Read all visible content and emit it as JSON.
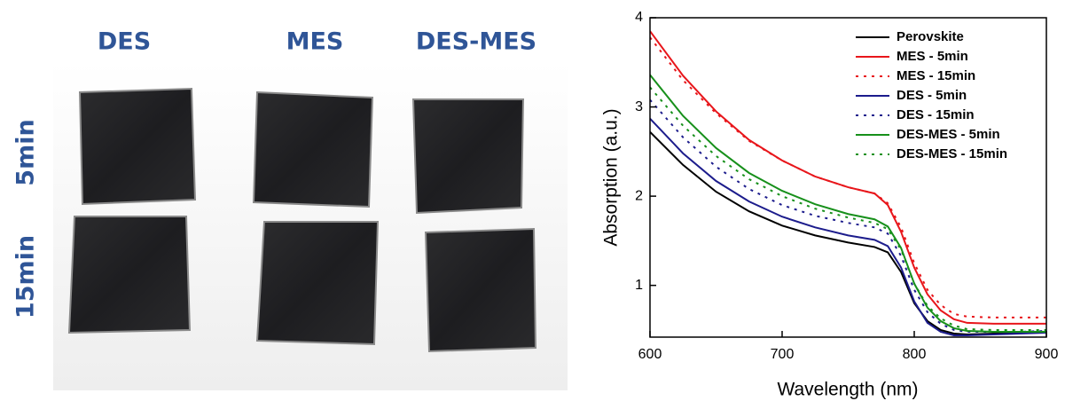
{
  "photo_panel": {
    "column_labels": [
      "DES",
      "MES",
      "DES-MES"
    ],
    "row_labels": [
      "5min",
      "15min"
    ]
  },
  "chart_data": {
    "type": "line",
    "xlabel": "Wavelength (nm)",
    "ylabel": "Absorption (a.u.)",
    "x": [
      600,
      625,
      650,
      675,
      700,
      725,
      750,
      770,
      780,
      790,
      800,
      810,
      820,
      830,
      840,
      860,
      880,
      900
    ],
    "xlim": [
      600,
      900
    ],
    "xticks": [
      600,
      700,
      800,
      900
    ],
    "ylim": [
      0.42,
      4
    ],
    "yticks": [
      1,
      2,
      3,
      4
    ],
    "legend": "upper right",
    "series": [
      {
        "name": "Perovskite",
        "color": "#000000",
        "style": "solid",
        "values": [
          2.72,
          2.35,
          2.05,
          1.83,
          1.67,
          1.56,
          1.48,
          1.43,
          1.37,
          1.15,
          0.8,
          0.6,
          0.5,
          0.46,
          0.45,
          0.46,
          0.47,
          0.48
        ]
      },
      {
        "name": "MES - 5min",
        "color": "#e8161b",
        "style": "solid",
        "values": [
          3.85,
          3.35,
          2.95,
          2.63,
          2.4,
          2.22,
          2.1,
          2.03,
          1.9,
          1.6,
          1.2,
          0.9,
          0.72,
          0.62,
          0.58,
          0.57,
          0.57,
          0.57
        ]
      },
      {
        "name": "MES - 15min",
        "color": "#e8161b",
        "style": "dotted",
        "values": [
          3.78,
          3.3,
          2.93,
          2.62,
          2.4,
          2.22,
          2.1,
          2.03,
          1.92,
          1.65,
          1.25,
          0.95,
          0.78,
          0.68,
          0.65,
          0.64,
          0.64,
          0.64
        ]
      },
      {
        "name": "DES - 5min",
        "color": "#1c1c8c",
        "style": "solid",
        "values": [
          2.87,
          2.48,
          2.17,
          1.94,
          1.77,
          1.65,
          1.56,
          1.51,
          1.44,
          1.2,
          0.82,
          0.58,
          0.48,
          0.44,
          0.44,
          0.45,
          0.46,
          0.47
        ]
      },
      {
        "name": "DES - 15min",
        "color": "#1c1c8c",
        "style": "dotted",
        "values": [
          3.08,
          2.66,
          2.33,
          2.08,
          1.9,
          1.78,
          1.7,
          1.65,
          1.58,
          1.33,
          0.95,
          0.7,
          0.57,
          0.5,
          0.48,
          0.48,
          0.48,
          0.49
        ]
      },
      {
        "name": "DES-MES - 5min",
        "color": "#17901b",
        "style": "solid",
        "values": [
          3.36,
          2.9,
          2.54,
          2.26,
          2.06,
          1.91,
          1.8,
          1.74,
          1.66,
          1.42,
          1.02,
          0.75,
          0.6,
          0.52,
          0.49,
          0.48,
          0.48,
          0.48
        ]
      },
      {
        "name": "DES-MES - 15min",
        "color": "#17901b",
        "style": "dotted",
        "values": [
          3.22,
          2.79,
          2.45,
          2.19,
          2.0,
          1.86,
          1.76,
          1.7,
          1.63,
          1.4,
          1.02,
          0.77,
          0.63,
          0.55,
          0.51,
          0.5,
          0.5,
          0.5
        ]
      }
    ]
  }
}
